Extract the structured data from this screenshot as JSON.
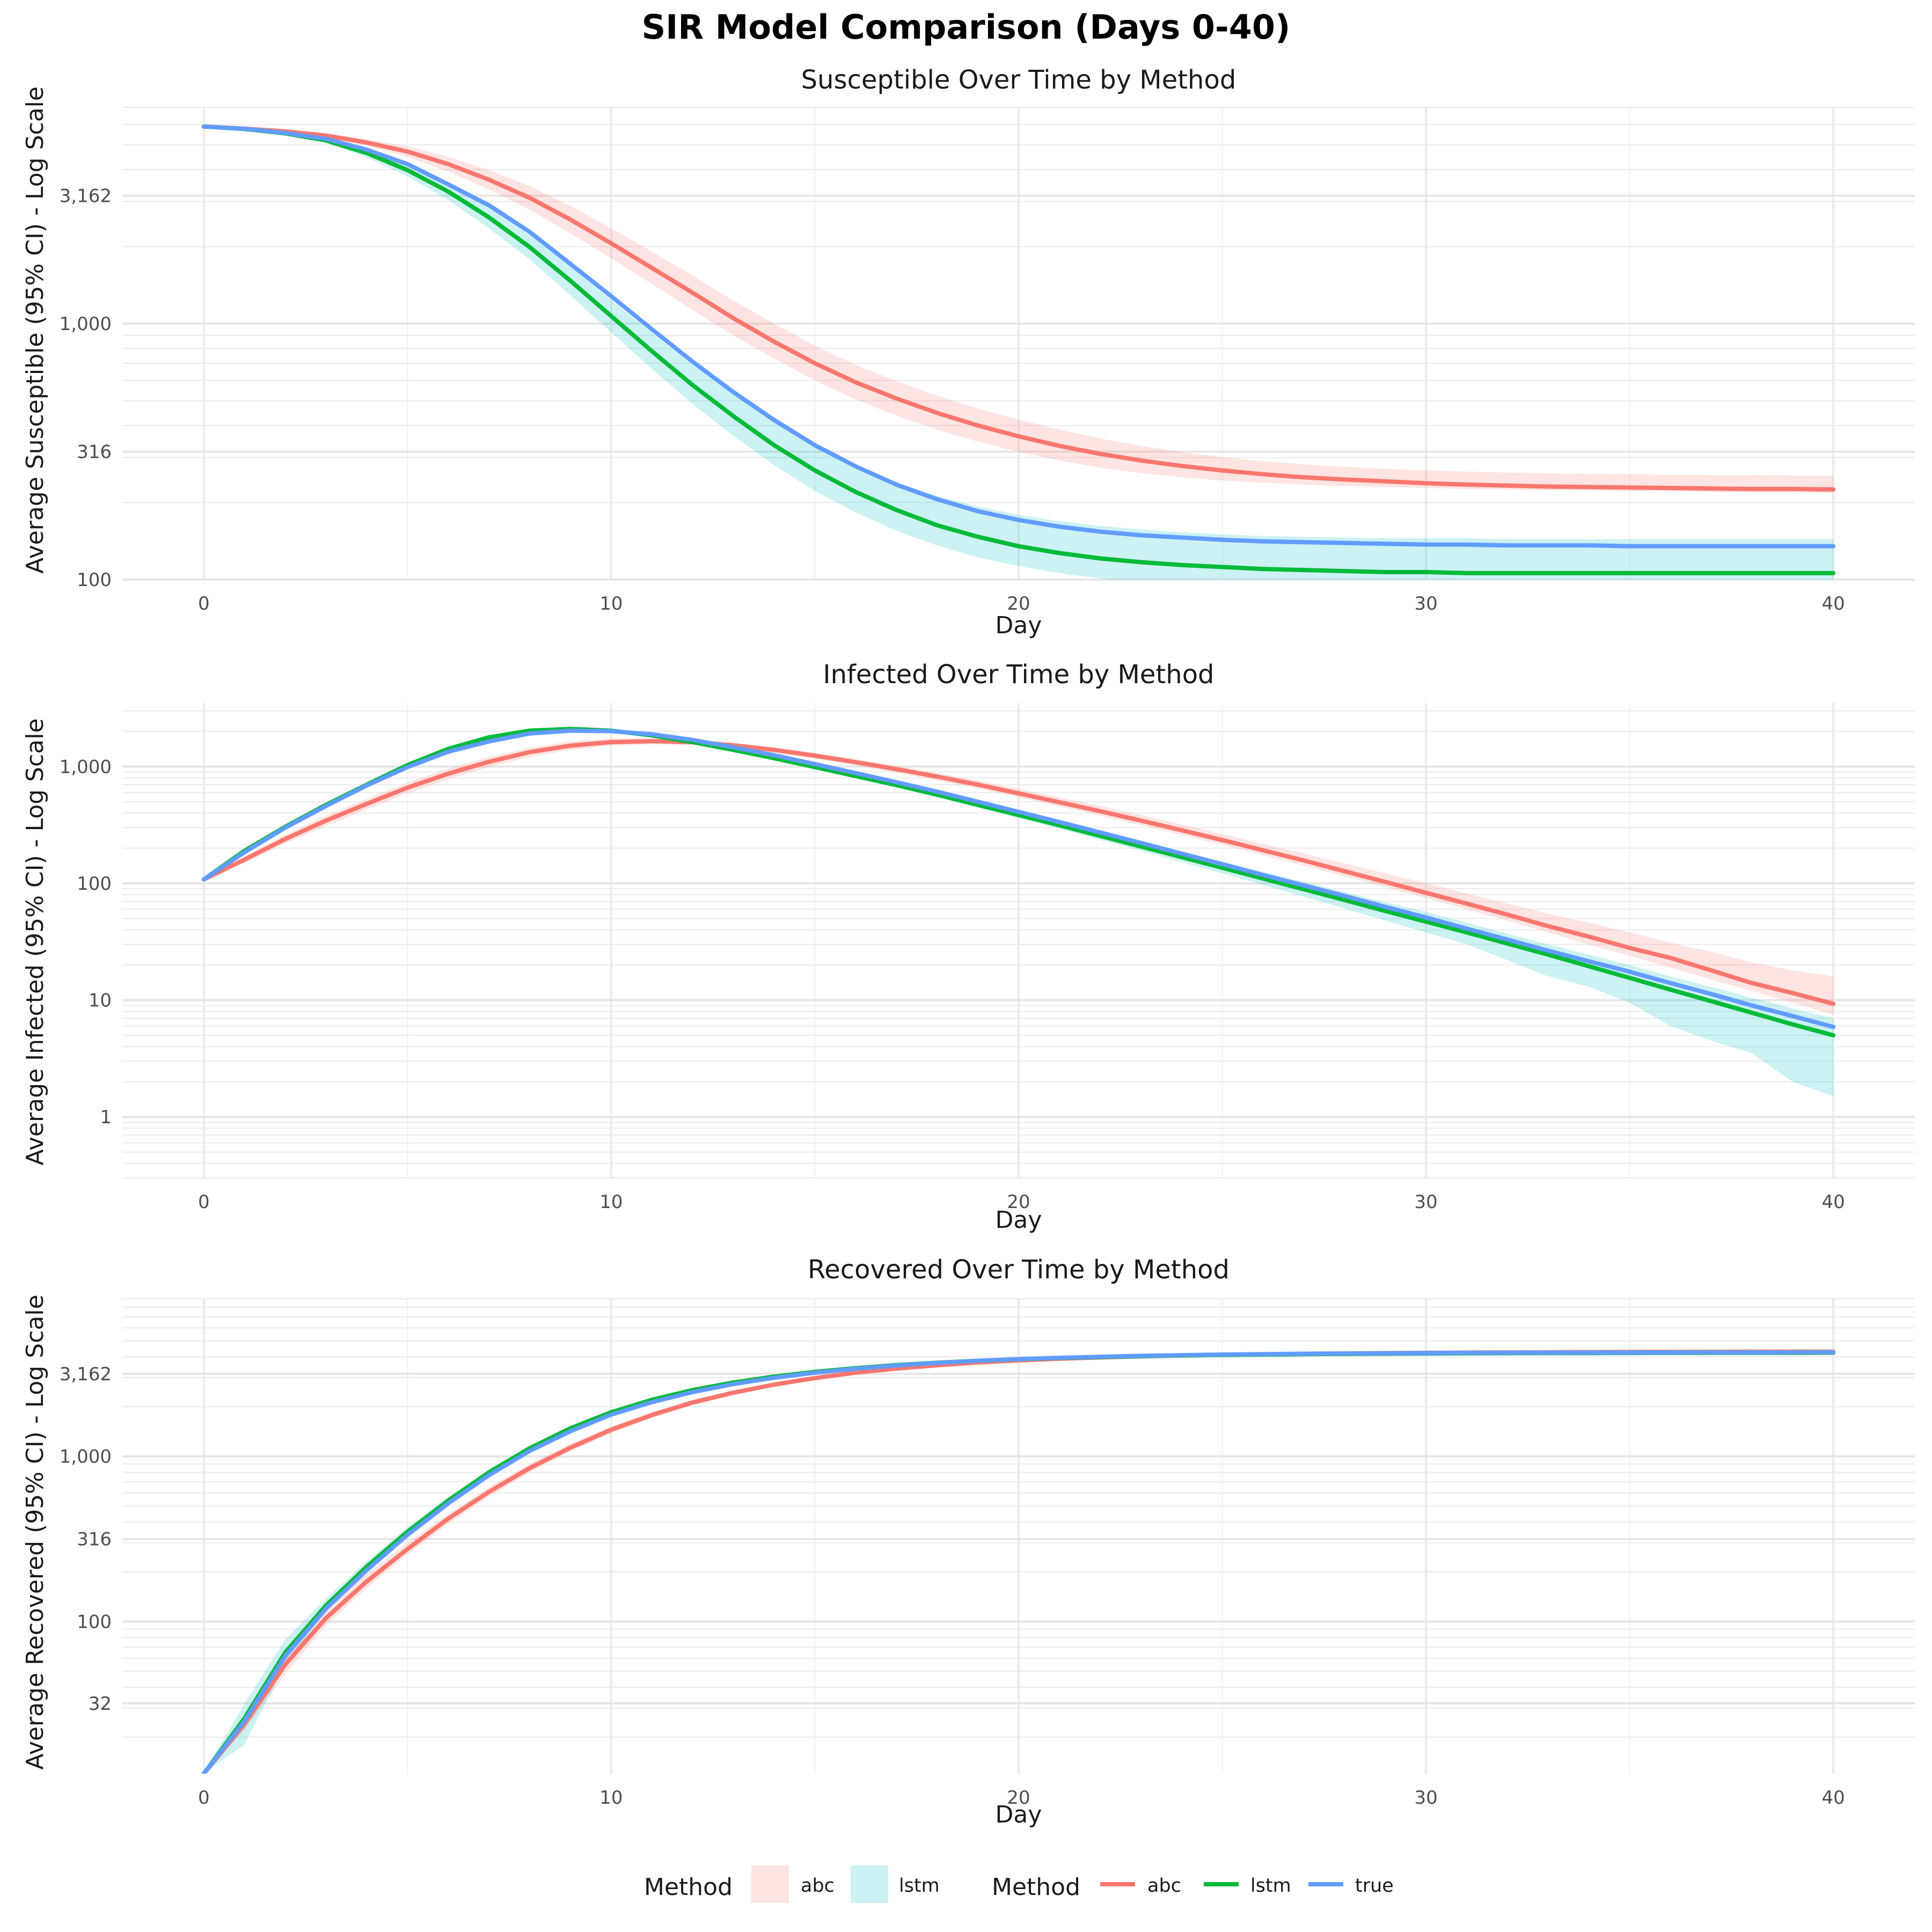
{
  "title": "SIR Model Comparison (Days 0-40)",
  "colors": {
    "abc": "#F8766D",
    "lstm": "#00BA38",
    "true": "#619CFF"
  },
  "legend": {
    "fill_title": "Method",
    "fill_items": [
      "abc",
      "lstm"
    ],
    "line_title": "Method",
    "line_items": [
      "abc",
      "lstm",
      "true"
    ]
  },
  "chart_data": [
    {
      "type": "line",
      "title": "Susceptible Over Time by Method",
      "xlabel": "Day",
      "ylabel": "Average Susceptible (95% CI) - Log Scale",
      "yscale": "log",
      "xlim": [
        -2,
        42
      ],
      "ylim": [
        100,
        7000
      ],
      "xticks": [
        0,
        10,
        20,
        30,
        40
      ],
      "yticks": [
        100,
        316,
        1000,
        3162
      ],
      "ytick_labels": [
        "100",
        "316",
        "1,000",
        "3,162"
      ],
      "grid": true,
      "x": [
        0,
        1,
        2,
        3,
        4,
        5,
        6,
        7,
        8,
        9,
        10,
        11,
        12,
        13,
        14,
        15,
        16,
        17,
        18,
        19,
        20,
        21,
        22,
        23,
        24,
        25,
        26,
        27,
        28,
        29,
        30,
        31,
        32,
        33,
        34,
        35,
        36,
        37,
        38,
        39,
        40
      ],
      "series": [
        {
          "name": "abc",
          "values": [
            5890,
            5780,
            5640,
            5430,
            5100,
            4700,
            4200,
            3650,
            3100,
            2550,
            2060,
            1650,
            1320,
            1050,
            850,
            700,
            590,
            510,
            448,
            400,
            363,
            333,
            310,
            292,
            278,
            267,
            258,
            251,
            246,
            242,
            238,
            235,
            233,
            231,
            230,
            229,
            228,
            227,
            226,
            226,
            225
          ],
          "lower": [
            5890,
            5760,
            5590,
            5330,
            4950,
            4480,
            3930,
            3340,
            2780,
            2250,
            1800,
            1430,
            1130,
            900,
            730,
            600,
            505,
            437,
            385,
            346,
            316,
            292,
            274,
            261,
            251,
            244,
            239,
            235,
            232,
            230,
            228,
            226,
            225,
            224,
            223,
            222,
            221,
            220,
            219,
            219,
            218
          ],
          "upper": [
            5890,
            5800,
            5690,
            5540,
            5260,
            4920,
            4480,
            3980,
            3450,
            2880,
            2360,
            1910,
            1540,
            1230,
            1000,
            820,
            690,
            596,
            523,
            466,
            422,
            386,
            356,
            333,
            315,
            301,
            290,
            282,
            276,
            271,
            267,
            264,
            262,
            260,
            259,
            258,
            257,
            256,
            256,
            255,
            255
          ]
        },
        {
          "name": "lstm",
          "values": [
            5890,
            5760,
            5540,
            5200,
            4640,
            3980,
            3280,
            2600,
            1990,
            1470,
            1070,
            780,
            575,
            435,
            335,
            267,
            220,
            187,
            163,
            147,
            135,
            127,
            121,
            117,
            114,
            112,
            110,
            109,
            108,
            107,
            107,
            106,
            106,
            106,
            106,
            106,
            106,
            106,
            106,
            106,
            106
          ],
          "lower": [
            5890,
            5740,
            5480,
            5080,
            4460,
            3760,
            3040,
            2360,
            1780,
            1290,
            925,
            665,
            485,
            364,
            280,
            222,
            183,
            155,
            136,
            122,
            113,
            106,
            101,
            97,
            94,
            92,
            91,
            90,
            89,
            89,
            88,
            88,
            88,
            88,
            88,
            87,
            87,
            87,
            87,
            87,
            87
          ],
          "upper": [
            5890,
            5780,
            5600,
            5320,
            4820,
            4200,
            3520,
            2840,
            2220,
            1670,
            1240,
            920,
            690,
            530,
            414,
            334,
            278,
            240,
            212,
            193,
            179,
            169,
            162,
            157,
            153,
            150,
            148,
            147,
            146,
            145,
            145,
            145,
            144,
            144,
            144,
            144,
            144,
            144,
            144,
            144,
            144
          ]
        },
        {
          "name": "true",
          "values": [
            5890,
            5770,
            5560,
            5270,
            4780,
            4200,
            3500,
            2900,
            2280,
            1710,
            1280,
            950,
            710,
            540,
            420,
            335,
            277,
            235,
            206,
            185,
            171,
            161,
            154,
            149,
            146,
            143,
            141,
            140,
            139,
            138,
            137,
            137,
            136,
            136,
            136,
            135,
            135,
            135,
            135,
            135,
            135
          ]
        }
      ]
    },
    {
      "type": "line",
      "title": "Infected Over Time by Method",
      "xlabel": "Day",
      "ylabel": "Average Infected (95% CI) - Log Scale",
      "yscale": "log",
      "xlim": [
        -2,
        42
      ],
      "ylim": [
        0.3,
        3500
      ],
      "xticks": [
        0,
        10,
        20,
        30,
        40
      ],
      "yticks": [
        1,
        10,
        100,
        1000
      ],
      "ytick_labels": [
        "1",
        "10",
        "100",
        "1,000"
      ],
      "grid": true,
      "x": [
        0,
        1,
        2,
        3,
        4,
        5,
        6,
        7,
        8,
        9,
        10,
        11,
        12,
        13,
        14,
        15,
        16,
        17,
        18,
        19,
        20,
        21,
        22,
        23,
        24,
        25,
        26,
        27,
        28,
        29,
        30,
        31,
        32,
        33,
        34,
        35,
        36,
        37,
        38,
        39,
        40
      ],
      "series": [
        {
          "name": "abc",
          "values": [
            108,
            160,
            240,
            345,
            480,
            660,
            870,
            1100,
            1330,
            1510,
            1620,
            1650,
            1620,
            1520,
            1390,
            1240,
            1090,
            950,
            820,
            700,
            590,
            495,
            415,
            345,
            285,
            235,
            192,
            157,
            127,
            103,
            83,
            67,
            54,
            43,
            35,
            28,
            23,
            18,
            14,
            11.5,
            9.3
          ],
          "lower": [
            108,
            150,
            220,
            310,
            430,
            590,
            780,
            990,
            1210,
            1390,
            1510,
            1550,
            1530,
            1440,
            1310,
            1170,
            1020,
            885,
            760,
            648,
            545,
            455,
            380,
            315,
            260,
            214,
            175,
            142,
            115,
            93,
            75,
            60,
            48,
            38,
            30,
            24,
            19,
            15,
            12,
            9.5,
            7.5
          ],
          "upper": [
            108,
            170,
            260,
            380,
            530,
            730,
            960,
            1210,
            1450,
            1640,
            1740,
            1760,
            1710,
            1600,
            1460,
            1310,
            1160,
            1020,
            880,
            760,
            645,
            545,
            460,
            385,
            320,
            265,
            218,
            180,
            148,
            122,
            100,
            82,
            67,
            55,
            46,
            38,
            31,
            26,
            21,
            18,
            16
          ]
        },
        {
          "name": "lstm",
          "values": [
            108,
            190,
            305,
            470,
            700,
            1030,
            1420,
            1780,
            2030,
            2100,
            2030,
            1850,
            1620,
            1390,
            1180,
            990,
            830,
            695,
            575,
            470,
            385,
            315,
            255,
            207,
            168,
            136,
            110,
            89,
            72,
            58,
            47,
            38,
            30.5,
            24.5,
            19.5,
            15.5,
            12.3,
            9.8,
            7.8,
            6.2,
            5.0
          ],
          "lower": [
            108,
            185,
            295,
            455,
            675,
            990,
            1370,
            1720,
            1960,
            2030,
            1960,
            1780,
            1560,
            1330,
            1130,
            945,
            790,
            660,
            545,
            445,
            362,
            293,
            236,
            190,
            152,
            122,
            97,
            77,
            61,
            48,
            38,
            30,
            22,
            16,
            13,
            9.5,
            6,
            4.5,
            3.5,
            2,
            1.5
          ],
          "upper": [
            108,
            195,
            315,
            490,
            725,
            1070,
            1470,
            1840,
            2100,
            2170,
            2100,
            1920,
            1690,
            1450,
            1240,
            1040,
            875,
            735,
            610,
            500,
            412,
            340,
            278,
            228,
            187,
            153,
            125,
            103,
            84,
            69,
            57,
            46,
            37,
            30,
            24.5,
            20,
            16,
            13,
            10.5,
            8.5,
            7
          ]
        },
        {
          "name": "true",
          "values": [
            108,
            185,
            300,
            460,
            690,
            990,
            1340,
            1640,
            1920,
            2030,
            2010,
            1890,
            1690,
            1460,
            1250,
            1050,
            880,
            735,
            610,
            500,
            410,
            335,
            273,
            222,
            180,
            146,
            118,
            96,
            78,
            63,
            51,
            41,
            33,
            26.5,
            21.5,
            17.5,
            14,
            11.3,
            9.0,
            7.3,
            5.9
          ]
        }
      ]
    },
    {
      "type": "line",
      "title": "Recovered Over Time by Method",
      "xlabel": "Day",
      "ylabel": "Average Recovered (95% CI) - Log Scale",
      "yscale": "log",
      "xlim": [
        -2,
        42
      ],
      "ylim": [
        12,
        9000
      ],
      "xticks": [
        0,
        10,
        20,
        30,
        40
      ],
      "yticks": [
        32,
        100,
        316,
        1000,
        3162
      ],
      "ytick_labels": [
        "32",
        "100",
        "316",
        "1,000",
        "3,162"
      ],
      "grid": true,
      "x": [
        0,
        1,
        2,
        3,
        4,
        5,
        6,
        7,
        8,
        9,
        10,
        11,
        12,
        13,
        14,
        15,
        16,
        17,
        18,
        19,
        20,
        21,
        22,
        23,
        24,
        25,
        26,
        27,
        28,
        29,
        30,
        31,
        32,
        33,
        34,
        35,
        36,
        37,
        38,
        39,
        40
      ],
      "series": [
        {
          "name": "abc",
          "values": [
            12,
            24,
            55,
            105,
            175,
            275,
            420,
            610,
            850,
            1130,
            1450,
            1780,
            2120,
            2430,
            2720,
            2980,
            3210,
            3400,
            3560,
            3700,
            3810,
            3900,
            3970,
            4030,
            4080,
            4120,
            4150,
            4180,
            4200,
            4220,
            4235,
            4250,
            4260,
            4270,
            4278,
            4285,
            4290,
            4295,
            4300,
            4303,
            4306
          ],
          "lower": [
            12,
            22,
            48,
            95,
            160,
            255,
            390,
            570,
            800,
            1070,
            1380,
            1710,
            2040,
            2350,
            2640,
            2900,
            3130,
            3330,
            3490,
            3630,
            3740,
            3830,
            3900,
            3960,
            4010,
            4050,
            4080,
            4110,
            4130,
            4150,
            4165,
            4180,
            4190,
            4200,
            4208,
            4215,
            4220,
            4225,
            4230,
            4233,
            4236
          ],
          "upper": [
            12,
            27,
            62,
            118,
            195,
            300,
            450,
            650,
            900,
            1190,
            1520,
            1860,
            2200,
            2510,
            2800,
            3060,
            3290,
            3480,
            3640,
            3780,
            3890,
            3980,
            4050,
            4110,
            4160,
            4200,
            4230,
            4260,
            4280,
            4300,
            4315,
            4330,
            4340,
            4350,
            4358,
            4365,
            4370,
            4375,
            4380,
            4383,
            4386
          ]
        },
        {
          "name": "lstm",
          "values": [
            12,
            26,
            65,
            125,
            215,
            350,
            540,
            800,
            1120,
            1480,
            1850,
            2200,
            2520,
            2800,
            3040,
            3250,
            3420,
            3570,
            3690,
            3790,
            3870,
            3940,
            3990,
            4040,
            4080,
            4110,
            4135,
            4155,
            4170,
            4185,
            4195,
            4205,
            4212,
            4218,
            4223,
            4227,
            4231,
            4234,
            4236,
            4238,
            4240
          ],
          "lower": [
            12,
            18,
            55,
            115,
            200,
            330,
            515,
            770,
            1080,
            1440,
            1800,
            2150,
            2470,
            2750,
            2990,
            3200,
            3380,
            3530,
            3650,
            3750,
            3830,
            3900,
            3950,
            4000,
            4040,
            4070,
            4095,
            4115,
            4130,
            4145,
            4155,
            4165,
            4172,
            4178,
            4183,
            4187,
            4191,
            4194,
            4196,
            4198,
            4200
          ],
          "upper": [
            12,
            32,
            78,
            138,
            232,
            372,
            568,
            835,
            1160,
            1525,
            1900,
            2250,
            2570,
            2850,
            3090,
            3300,
            3470,
            3620,
            3740,
            3840,
            3920,
            3990,
            4040,
            4090,
            4130,
            4160,
            4185,
            4205,
            4220,
            4235,
            4245,
            4255,
            4262,
            4268,
            4273,
            4277,
            4281,
            4284,
            4286,
            4288,
            4290
          ]
        },
        {
          "name": "true",
          "values": [
            12,
            25,
            62,
            120,
            205,
            335,
            520,
            770,
            1080,
            1420,
            1790,
            2130,
            2450,
            2740,
            2990,
            3210,
            3390,
            3550,
            3680,
            3790,
            3880,
            3950,
            4010,
            4060,
            4100,
            4135,
            4160,
            4180,
            4195,
            4210,
            4220,
            4230,
            4237,
            4243,
            4248,
            4252,
            4256,
            4259,
            4261,
            4263,
            4265
          ]
        }
      ]
    }
  ]
}
